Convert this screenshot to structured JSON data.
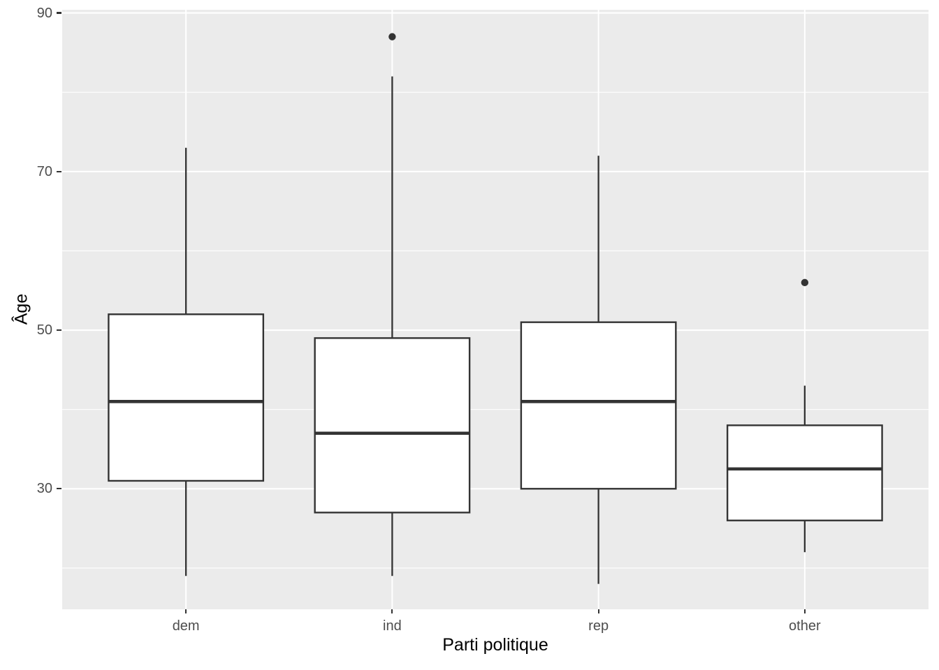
{
  "chart_data": {
    "type": "boxplot",
    "xlabel": "Parti politique",
    "ylabel": "Âge",
    "categories": [
      "dem",
      "ind",
      "rep",
      "other"
    ],
    "y_axis": {
      "ticks": [
        30,
        50,
        70,
        90
      ],
      "tick_labels": [
        "30",
        "50",
        "70",
        "90"
      ],
      "minor_ticks": [
        20,
        40,
        60,
        80
      ],
      "range": [
        14.8,
        90.4
      ]
    },
    "series": [
      {
        "category": "dem",
        "whisker_min": 19,
        "q1": 31,
        "median": 41,
        "q3": 52,
        "whisker_max": 73,
        "outliers": []
      },
      {
        "category": "ind",
        "whisker_min": 19,
        "q1": 27,
        "median": 37,
        "q3": 49,
        "whisker_max": 82,
        "outliers": [
          87
        ]
      },
      {
        "category": "rep",
        "whisker_min": 18,
        "q1": 30,
        "median": 41,
        "q3": 51,
        "whisker_max": 72,
        "outliers": []
      },
      {
        "category": "other",
        "whisker_min": 22,
        "q1": 26,
        "median": 32.5,
        "q3": 38,
        "whisker_max": 43,
        "outliers": [
          56
        ]
      }
    ],
    "legend": "none",
    "grid": "on",
    "colors": {
      "panel_bg": "#EBEBEB",
      "grid": "#FFFFFF",
      "box_fill": "#FFFFFF",
      "box_stroke": "#333333",
      "tick_mark": "#333333",
      "tick_label": "#4D4D4D",
      "axis_title": "#000000",
      "figure_bg": "#FFFFFF"
    }
  }
}
